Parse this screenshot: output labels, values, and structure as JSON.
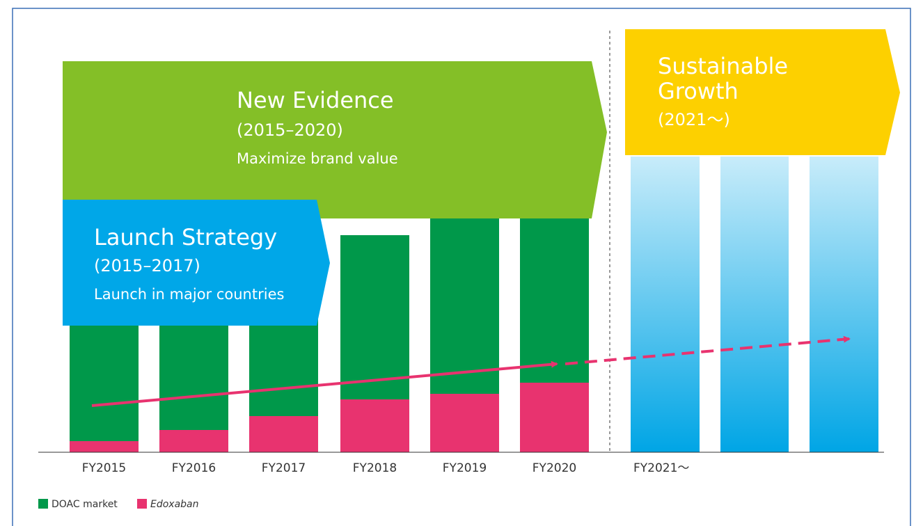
{
  "chart_data": {
    "type": "stacked_bar",
    "categories": [
      "FY2015",
      "FY2016",
      "FY2017",
      "FY2018",
      "FY2019",
      "FY2020"
    ],
    "future_label": "FY2021～",
    "series": [
      {
        "name": "Edoxaban",
        "color": "#e8336f",
        "values": [
          4,
          8,
          13,
          19,
          21,
          25
        ]
      },
      {
        "name": "DOAC market",
        "color": "#00984a",
        "values": [
          46,
          47,
          49,
          59,
          64,
          65
        ]
      }
    ],
    "ylim": [
      0,
      100
    ],
    "phases": [
      {
        "title": "New Evidence",
        "period": "(2015–2020)",
        "text": "Maximize brand value"
      },
      {
        "title": "Launch Strategy",
        "period": "(2015–2017)",
        "text": "Launch in major countries"
      },
      {
        "title": [
          "Sustainable",
          "Growth"
        ],
        "period": "(2021～)"
      }
    ]
  }
}
